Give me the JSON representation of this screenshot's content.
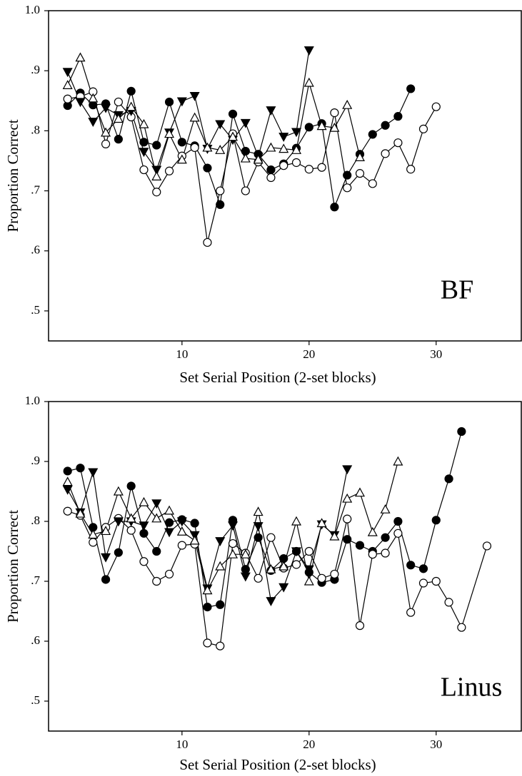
{
  "chart_data": [
    {
      "type": "line",
      "annotation": "BF",
      "xlabel": "Set Serial Position (2-set blocks)",
      "ylabel": "Proportion Correct",
      "xlim": [
        -0.5,
        36.7
      ],
      "xticks": [
        10,
        20,
        30
      ],
      "ylim": [
        0.45,
        1.0
      ],
      "yticks": [
        {
          "value": 0.5,
          "label": ".5"
        },
        {
          "value": 0.6,
          "label": ".6"
        },
        {
          "value": 0.7,
          "label": ".7"
        },
        {
          "value": 0.8,
          "label": ".8"
        },
        {
          "value": 0.9,
          "label": ".9"
        },
        {
          "value": 1.0,
          "label": "1.0"
        }
      ],
      "series": [
        {
          "marker": "circle",
          "filled": true,
          "color": "#000000",
          "x": [
            1,
            2,
            3,
            4,
            5,
            6,
            7,
            8,
            9,
            10,
            11,
            12,
            13,
            14,
            15,
            16,
            17,
            18,
            19,
            20,
            21,
            22,
            23,
            24,
            25,
            26,
            27,
            28
          ],
          "values": [
            0.842,
            0.863,
            0.843,
            0.845,
            0.786,
            0.866,
            0.781,
            0.776,
            0.848,
            0.781,
            0.775,
            0.738,
            0.677,
            0.828,
            0.766,
            0.761,
            0.735,
            0.745,
            0.771,
            0.806,
            0.812,
            0.673,
            0.726,
            0.761,
            0.794,
            0.809,
            0.824,
            0.87
          ]
        },
        {
          "marker": "circle",
          "filled": false,
          "color": "#000000",
          "x": [
            1,
            2,
            3,
            4,
            5,
            6,
            7,
            8,
            9,
            10,
            11,
            12,
            13,
            14,
            15,
            16,
            17,
            18,
            19,
            20,
            21,
            22,
            23,
            24,
            25,
            26,
            27,
            28,
            29,
            30
          ],
          "values": [
            0.853,
            0.857,
            0.865,
            0.778,
            0.848,
            0.823,
            0.735,
            0.698,
            0.733,
            0.758,
            0.772,
            0.614,
            0.7,
            0.795,
            0.7,
            0.748,
            0.722,
            0.742,
            0.747,
            0.736,
            0.739,
            0.83,
            0.705,
            0.729,
            0.712,
            0.762,
            0.78,
            0.736,
            0.803,
            0.84
          ]
        },
        {
          "marker": "triangle-down",
          "filled": true,
          "color": "#000000",
          "x": [
            1,
            2,
            3,
            4,
            5,
            6,
            7,
            8,
            9,
            10,
            11,
            12,
            13,
            14,
            15,
            16,
            17,
            18,
            19,
            20
          ],
          "values": [
            0.898,
            0.848,
            0.815,
            0.838,
            0.826,
            0.833,
            0.765,
            0.735,
            0.797,
            0.849,
            0.858,
            0.77,
            0.811,
            0.785,
            0.813,
            0.757,
            0.834,
            0.79,
            0.798,
            0.934
          ]
        },
        {
          "marker": "triangle-up",
          "filled": false,
          "color": "#000000",
          "x": [
            1,
            2,
            3,
            4,
            5,
            6,
            7,
            8,
            9,
            10,
            11,
            12,
            13,
            14,
            15,
            16,
            17,
            18,
            19,
            20,
            21,
            22,
            23,
            24
          ],
          "values": [
            0.876,
            0.922,
            0.854,
            0.797,
            0.82,
            0.84,
            0.811,
            0.724,
            0.795,
            0.752,
            0.822,
            0.772,
            0.768,
            0.79,
            0.754,
            0.752,
            0.772,
            0.77,
            0.768,
            0.88,
            0.808,
            0.805,
            0.843,
            0.756
          ]
        }
      ]
    },
    {
      "type": "line",
      "annotation": "Linus",
      "xlabel": "Set Serial Position (2-set blocks)",
      "ylabel": "Proportion Correct",
      "xlim": [
        -0.5,
        36.7
      ],
      "xticks": [
        10,
        20,
        30
      ],
      "ylim": [
        0.45,
        1.0
      ],
      "yticks": [
        {
          "value": 0.5,
          "label": ".5"
        },
        {
          "value": 0.6,
          "label": ".6"
        },
        {
          "value": 0.7,
          "label": ".7"
        },
        {
          "value": 0.8,
          "label": ".8"
        },
        {
          "value": 0.9,
          "label": ".9"
        },
        {
          "value": 1.0,
          "label": "1.0"
        }
      ],
      "series": [
        {
          "marker": "circle",
          "filled": true,
          "color": "#000000",
          "x": [
            1,
            2,
            3,
            4,
            5,
            6,
            7,
            8,
            9,
            10,
            11,
            12,
            13,
            14,
            15,
            16,
            17,
            18,
            19,
            20,
            21,
            22,
            23,
            24,
            25,
            26,
            27,
            28,
            29,
            30,
            31,
            32
          ],
          "values": [
            0.884,
            0.889,
            0.79,
            0.703,
            0.748,
            0.859,
            0.78,
            0.75,
            0.798,
            0.803,
            0.797,
            0.657,
            0.661,
            0.802,
            0.72,
            0.773,
            0.718,
            0.738,
            0.75,
            0.715,
            0.698,
            0.703,
            0.77,
            0.76,
            0.75,
            0.773,
            0.8,
            0.727,
            0.721,
            0.802,
            0.871,
            0.95
          ]
        },
        {
          "marker": "circle",
          "filled": false,
          "color": "#000000",
          "x": [
            1,
            2,
            3,
            4,
            5,
            6,
            7,
            8,
            9,
            10,
            11,
            12,
            13,
            14,
            15,
            16,
            17,
            18,
            19,
            20,
            21,
            22,
            23,
            24,
            25,
            26,
            27,
            28,
            29,
            30,
            31,
            32,
            34
          ],
          "values": [
            0.817,
            0.81,
            0.765,
            0.79,
            0.805,
            0.785,
            0.733,
            0.7,
            0.712,
            0.76,
            0.762,
            0.597,
            0.592,
            0.763,
            0.747,
            0.705,
            0.773,
            0.722,
            0.728,
            0.75,
            0.705,
            0.712,
            0.804,
            0.626,
            0.745,
            0.747,
            0.78,
            0.648,
            0.697,
            0.7,
            0.665,
            0.623,
            0.759
          ]
        },
        {
          "marker": "triangle-down",
          "filled": true,
          "color": "#000000",
          "x": [
            1,
            2,
            3,
            4,
            5,
            6,
            7,
            8,
            9,
            10,
            11,
            12,
            13,
            14,
            15,
            16,
            17,
            18,
            19,
            20,
            21,
            22,
            23
          ],
          "values": [
            0.853,
            0.815,
            0.882,
            0.74,
            0.8,
            0.8,
            0.793,
            0.83,
            0.782,
            0.8,
            0.777,
            0.688,
            0.767,
            0.793,
            0.708,
            0.792,
            0.667,
            0.69,
            0.75,
            0.72,
            0.795,
            0.777,
            0.887
          ]
        },
        {
          "marker": "triangle-up",
          "filled": false,
          "color": "#000000",
          "x": [
            1,
            2,
            3,
            4,
            5,
            6,
            7,
            8,
            9,
            10,
            11,
            12,
            13,
            14,
            15,
            16,
            17,
            18,
            19,
            20,
            21,
            22,
            23,
            24,
            25,
            26,
            27
          ],
          "values": [
            0.866,
            0.813,
            0.778,
            0.784,
            0.85,
            0.805,
            0.832,
            0.805,
            0.818,
            0.783,
            0.768,
            0.685,
            0.725,
            0.745,
            0.745,
            0.816,
            0.72,
            0.725,
            0.8,
            0.7,
            0.797,
            0.775,
            0.838,
            0.848,
            0.782,
            0.82,
            0.9
          ]
        }
      ]
    }
  ]
}
